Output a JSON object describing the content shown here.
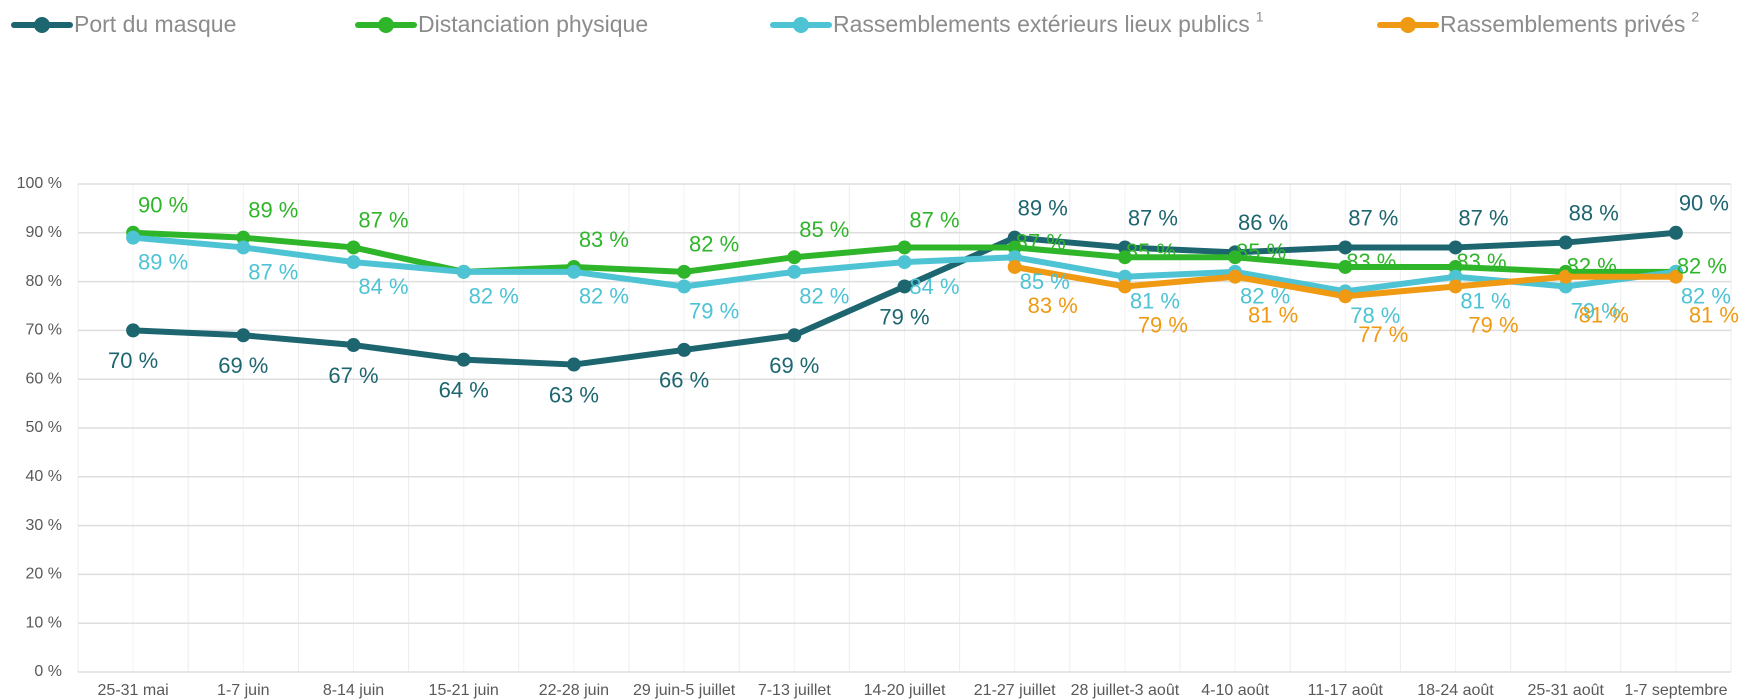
{
  "chart_data": {
    "type": "line",
    "categories": [
      "25-31 mai",
      "1-7 juin",
      "8-14 juin",
      "15-21 juin",
      "22-28 juin",
      "29 juin-5 juillet",
      "7-13 juillet",
      "14-20 juillet",
      "21-27 juillet",
      "28 juillet-3 août",
      "4-10 août",
      "11-17 août",
      "18-24 août",
      "25-31 août",
      "1-7 septembre"
    ],
    "series": [
      {
        "name": "Port du masque",
        "color": "#1d6670",
        "values": [
          70,
          69,
          67,
          64,
          63,
          66,
          69,
          79,
          89,
          87,
          86,
          87,
          87,
          88,
          90
        ],
        "value_labels": [
          "70 %",
          "69 %",
          "67 %",
          "64 %",
          "63 %",
          "66 %",
          "69 %",
          "79 %",
          "89 %",
          "87 %",
          "86 %",
          "87 %",
          "87 %",
          "88 %",
          "90 %"
        ]
      },
      {
        "name": "Distanciation physique",
        "color": "#2fb52a",
        "values": [
          90,
          89,
          87,
          82,
          83,
          82,
          85,
          87,
          87,
          85,
          85,
          83,
          83,
          82,
          82
        ],
        "value_labels": [
          "90 %",
          "89 %",
          "87 %",
          null,
          "83 %",
          "82 %",
          "85 %",
          "87 %",
          "87 %",
          "85 %",
          "85 %",
          "83 %",
          "83 %",
          "82 %",
          "82 %"
        ]
      },
      {
        "name": "Rassemblements extérieurs lieux publics",
        "footnote": "1",
        "color": "#4dc3d4",
        "values": [
          89,
          87,
          84,
          82,
          82,
          79,
          82,
          84,
          85,
          81,
          82,
          78,
          81,
          79,
          82
        ],
        "value_labels": [
          "89 %",
          "87 %",
          "84 %",
          "82 %",
          "82 %",
          "79 %",
          "82 %",
          "84 %",
          "85 %",
          "81 %",
          "82 %",
          "78 %",
          "81 %",
          "79 %",
          "82 %"
        ]
      },
      {
        "name": "Rassemblements privés",
        "footnote": "2",
        "color": "#ef9a12",
        "values": [
          null,
          null,
          null,
          null,
          null,
          null,
          null,
          null,
          83,
          79,
          81,
          77,
          79,
          81,
          81
        ],
        "value_labels": [
          null,
          null,
          null,
          null,
          null,
          null,
          null,
          null,
          "83 %",
          "79 %",
          "81 %",
          "77 %",
          "79 %",
          "81 %",
          "81 %"
        ]
      }
    ],
    "ylim": [
      0,
      100
    ],
    "yticks": [
      {
        "value": 0,
        "label": "0 %"
      },
      {
        "value": 10,
        "label": "10 %"
      },
      {
        "value": 20,
        "label": "20 %"
      },
      {
        "value": 30,
        "label": "30 %"
      },
      {
        "value": 40,
        "label": "40 %"
      },
      {
        "value": 50,
        "label": "50 %"
      },
      {
        "value": 60,
        "label": "60 %"
      },
      {
        "value": 70,
        "label": "70 %"
      },
      {
        "value": 80,
        "label": "80 %"
      },
      {
        "value": 90,
        "label": "90 %"
      },
      {
        "value": 100,
        "label": "100 %"
      }
    ],
    "grid": true
  }
}
